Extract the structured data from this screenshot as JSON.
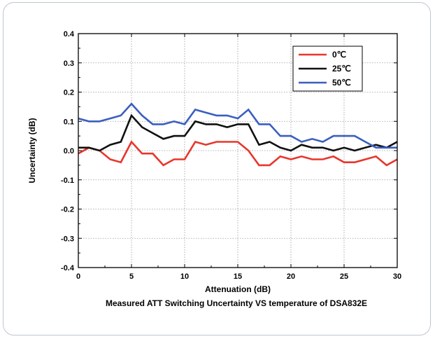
{
  "chart_data": {
    "type": "line",
    "title": "",
    "caption": "Measured ATT Switching Uncertainty VS temperature of DSA832E",
    "xlabel": "Attenuation (dB)",
    "ylabel": "Uncertainty (dB)",
    "xlim": [
      0,
      30
    ],
    "ylim": [
      -0.4,
      0.4
    ],
    "xticks": [
      0,
      5,
      10,
      15,
      20,
      25,
      30
    ],
    "yticks": [
      -0.4,
      -0.3,
      -0.2,
      -0.1,
      0.0,
      0.1,
      0.2,
      0.3,
      0.4
    ],
    "xtick_labels": [
      "0",
      "5",
      "10",
      "15",
      "20",
      "25",
      "30"
    ],
    "ytick_labels": [
      "-0.4",
      "-0.3",
      "-0.2",
      "-0.1",
      "0.0",
      "0.1",
      "0.2",
      "0.3",
      "0.4"
    ],
    "grid": true,
    "legend_position": "top-right",
    "x": [
      0,
      1,
      2,
      3,
      4,
      5,
      6,
      7,
      8,
      9,
      10,
      11,
      12,
      13,
      14,
      15,
      16,
      17,
      18,
      19,
      20,
      21,
      22,
      23,
      24,
      25,
      26,
      27,
      28,
      29,
      30
    ],
    "series": [
      {
        "name": "0℃",
        "color": "#e8362c",
        "values": [
          -0.01,
          0.01,
          0.0,
          -0.03,
          -0.04,
          0.03,
          -0.01,
          -0.01,
          -0.05,
          -0.03,
          -0.03,
          0.03,
          0.02,
          0.03,
          0.03,
          0.03,
          0.0,
          -0.05,
          -0.05,
          -0.02,
          -0.03,
          -0.02,
          -0.03,
          -0.03,
          -0.02,
          -0.04,
          -0.04,
          -0.03,
          -0.02,
          -0.05,
          -0.03
        ]
      },
      {
        "name": "25℃",
        "color": "#111111",
        "values": [
          0.01,
          0.01,
          0.0,
          0.02,
          0.03,
          0.12,
          0.08,
          0.06,
          0.04,
          0.05,
          0.05,
          0.1,
          0.09,
          0.09,
          0.08,
          0.09,
          0.09,
          0.02,
          0.03,
          0.01,
          0.0,
          0.02,
          0.01,
          0.01,
          0.0,
          0.01,
          0.0,
          0.01,
          0.02,
          0.01,
          0.03
        ]
      },
      {
        "name": "50℃",
        "color": "#3b5fc0",
        "values": [
          0.11,
          0.1,
          0.1,
          0.11,
          0.12,
          0.16,
          0.12,
          0.09,
          0.09,
          0.1,
          0.09,
          0.14,
          0.13,
          0.12,
          0.12,
          0.11,
          0.14,
          0.09,
          0.09,
          0.05,
          0.05,
          0.03,
          0.04,
          0.03,
          0.05,
          0.05,
          0.05,
          0.03,
          0.01,
          0.01,
          0.01
        ]
      }
    ]
  }
}
